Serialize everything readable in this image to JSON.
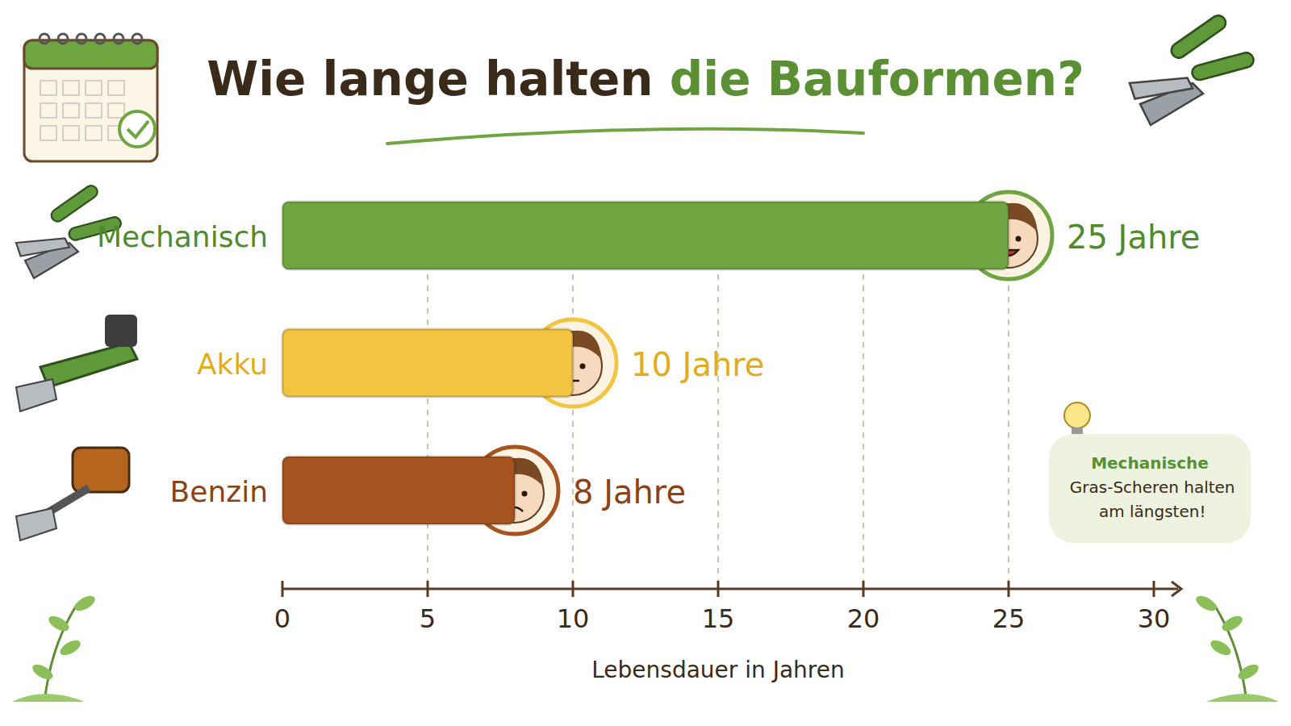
{
  "chart_data": {
    "type": "bar",
    "orientation": "horizontal",
    "title": "Wie lange halten die Bauformen?",
    "categories": [
      "Mechanisch",
      "Akku",
      "Benzin"
    ],
    "values": [
      25,
      10,
      8
    ],
    "value_labels": [
      "25 Jahre",
      "10 Jahre",
      "8 Jahre"
    ],
    "colors": [
      "#6ea541",
      "#f2c440",
      "#a5541f"
    ],
    "xlim": [
      0,
      30
    ],
    "xticks": [
      0,
      5,
      10,
      15,
      20,
      25,
      30
    ],
    "x_label": "Lebensdauer in Jahren",
    "grid": true,
    "data_labels": true,
    "annotation": "Mechanische Gras-Scheren halten am längsten!"
  }
}
